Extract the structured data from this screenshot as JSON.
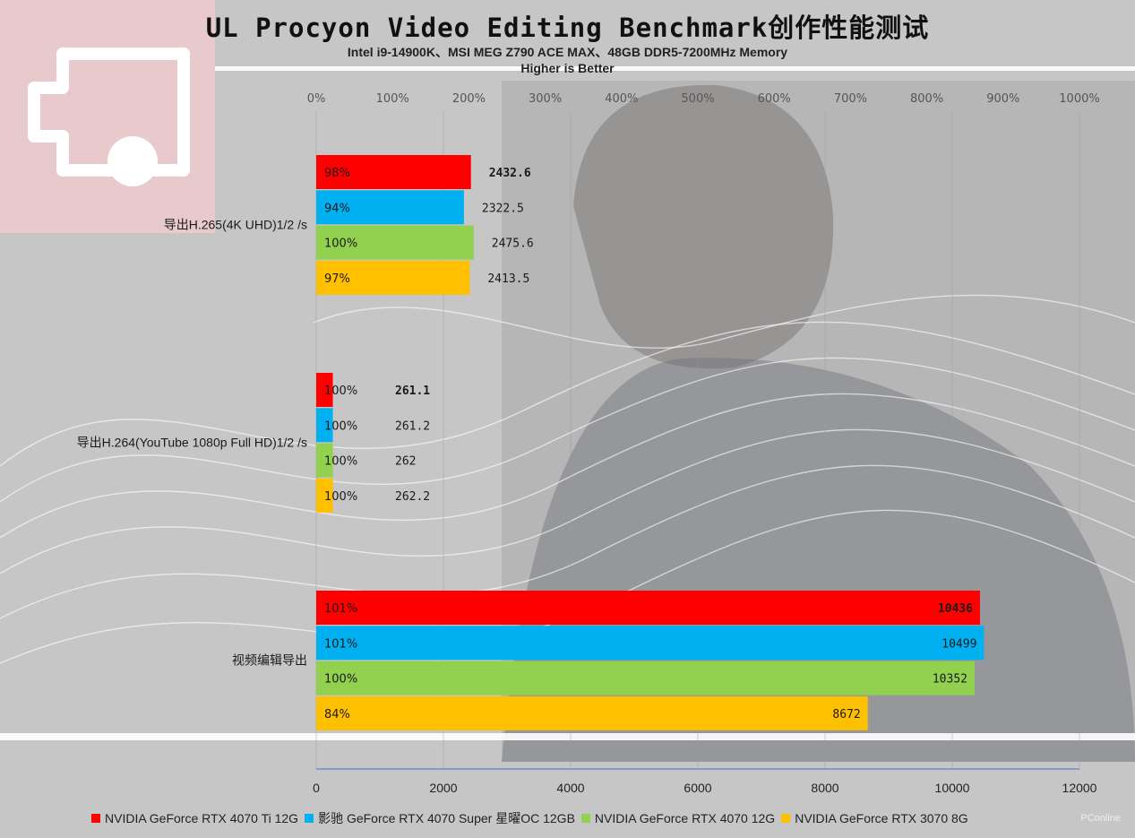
{
  "title": "UL Procyon Video Editing Benchmark创作性能测试",
  "subtitle": "Intel i9-14900K、MSI MEG Z790 ACE MAX、48GB DDR5-7200MHz Memory",
  "note": "Higher is Better",
  "watermark": "PConline",
  "colors": {
    "red": "#ff0000",
    "blue": "#00b0f0",
    "green": "#92d050",
    "orange": "#ffc000",
    "axis": "#4472c4"
  },
  "chart_data": {
    "type": "bar",
    "orientation": "horizontal",
    "categories": [
      "导出H.265(4K UHD)1/2 /s",
      "导出H.264(YouTube 1080p Full HD)1/2 /s",
      "视频编辑导出"
    ],
    "series": [
      {
        "name": "NVIDIA GeForce RTX 4070 Ti 12G",
        "color": "#ff0000",
        "values": [
          2432.6,
          261.1,
          10436
        ],
        "value_labels": [
          "2432.6",
          "261.1",
          "10436"
        ],
        "percent_labels": [
          "98%",
          "100%",
          "101%"
        ]
      },
      {
        "name": "影驰 GeForce RTX 4070 Super 星曜OC 12GB",
        "color": "#00b0f0",
        "values": [
          2322.5,
          261.2,
          10499
        ],
        "value_labels": [
          "2322.5",
          "261.2",
          "10499"
        ],
        "percent_labels": [
          "94%",
          "100%",
          "101%"
        ]
      },
      {
        "name": "NVIDIA GeForce RTX 4070 12G",
        "color": "#92d050",
        "values": [
          2475.6,
          262,
          10352
        ],
        "value_labels": [
          "2475.6",
          "262",
          "10352"
        ],
        "percent_labels": [
          "100%",
          "100%",
          "100%"
        ]
      },
      {
        "name": "NVIDIA GeForce RTX 3070 8G",
        "color": "#ffc000",
        "values": [
          2413.5,
          262.2,
          8672
        ],
        "value_labels": [
          "2413.5",
          "262.2",
          "8672"
        ],
        "percent_labels": [
          "97%",
          "100%",
          "84%"
        ]
      }
    ],
    "x_axis": {
      "ticks": [
        "0",
        "2000",
        "4000",
        "6000",
        "8000",
        "10000",
        "12000"
      ],
      "range": [
        0,
        12000
      ]
    },
    "secondary_x_axis": {
      "ticks": [
        "0%",
        "100%",
        "200%",
        "300%",
        "400%",
        "500%",
        "600%",
        "700%",
        "800%",
        "900%",
        "1000%"
      ],
      "range": [
        0,
        10
      ]
    },
    "display_scale": {
      "category_ranges": [
        [
          0,
          12000
        ],
        [
          0,
          12000
        ],
        [
          0,
          12000
        ]
      ]
    },
    "grid": true,
    "legend_position": "bottom"
  }
}
